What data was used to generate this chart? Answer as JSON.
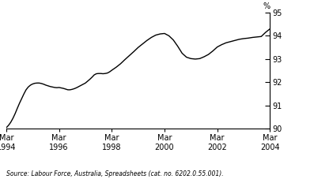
{
  "title": "",
  "ylabel": "%",
  "source_text": "Source: Labour Force, Australia, Spreadsheets (cat. no. 6202.0.55.001).",
  "ylim": [
    90,
    95
  ],
  "yticks": [
    90,
    91,
    92,
    93,
    94,
    95
  ],
  "xtick_labels": [
    "Mar\n1994",
    "Mar\n1996",
    "Mar\n1998",
    "Mar\n2000",
    "Mar\n2002",
    "Mar\n2004"
  ],
  "xtick_positions": [
    0,
    24,
    48,
    72,
    96,
    120
  ],
  "line_color": "#000000",
  "line_width": 1.0,
  "background_color": "#ffffff",
  "x_data": [
    0,
    1,
    2,
    3,
    4,
    5,
    6,
    7,
    8,
    9,
    10,
    11,
    12,
    13,
    14,
    15,
    16,
    17,
    18,
    19,
    20,
    21,
    22,
    23,
    24,
    25,
    26,
    27,
    28,
    29,
    30,
    31,
    32,
    33,
    34,
    35,
    36,
    37,
    38,
    39,
    40,
    41,
    42,
    43,
    44,
    45,
    46,
    47,
    48,
    50,
    52,
    54,
    56,
    58,
    60,
    62,
    64,
    66,
    68,
    70,
    72,
    74,
    76,
    78,
    80,
    82,
    84,
    86,
    88,
    90,
    92,
    94,
    96,
    98,
    100,
    102,
    104,
    106,
    108,
    110,
    112,
    114,
    116,
    118,
    120
  ],
  "y_data": [
    90.05,
    90.15,
    90.28,
    90.45,
    90.65,
    90.88,
    91.1,
    91.3,
    91.5,
    91.68,
    91.8,
    91.88,
    91.93,
    91.96,
    91.97,
    91.97,
    91.95,
    91.92,
    91.88,
    91.85,
    91.82,
    91.8,
    91.78,
    91.77,
    91.78,
    91.76,
    91.74,
    91.71,
    91.68,
    91.68,
    91.7,
    91.73,
    91.77,
    91.82,
    91.87,
    91.92,
    91.97,
    92.05,
    92.13,
    92.22,
    92.32,
    92.37,
    92.38,
    92.38,
    92.37,
    92.38,
    92.4,
    92.45,
    92.52,
    92.65,
    92.8,
    92.98,
    93.15,
    93.32,
    93.5,
    93.65,
    93.8,
    93.93,
    94.03,
    94.08,
    94.1,
    94.0,
    93.82,
    93.55,
    93.25,
    93.08,
    93.02,
    93.0,
    93.02,
    93.1,
    93.2,
    93.35,
    93.52,
    93.62,
    93.7,
    93.75,
    93.8,
    93.85,
    93.88,
    93.9,
    93.93,
    93.95,
    93.97,
    94.15,
    94.3
  ]
}
